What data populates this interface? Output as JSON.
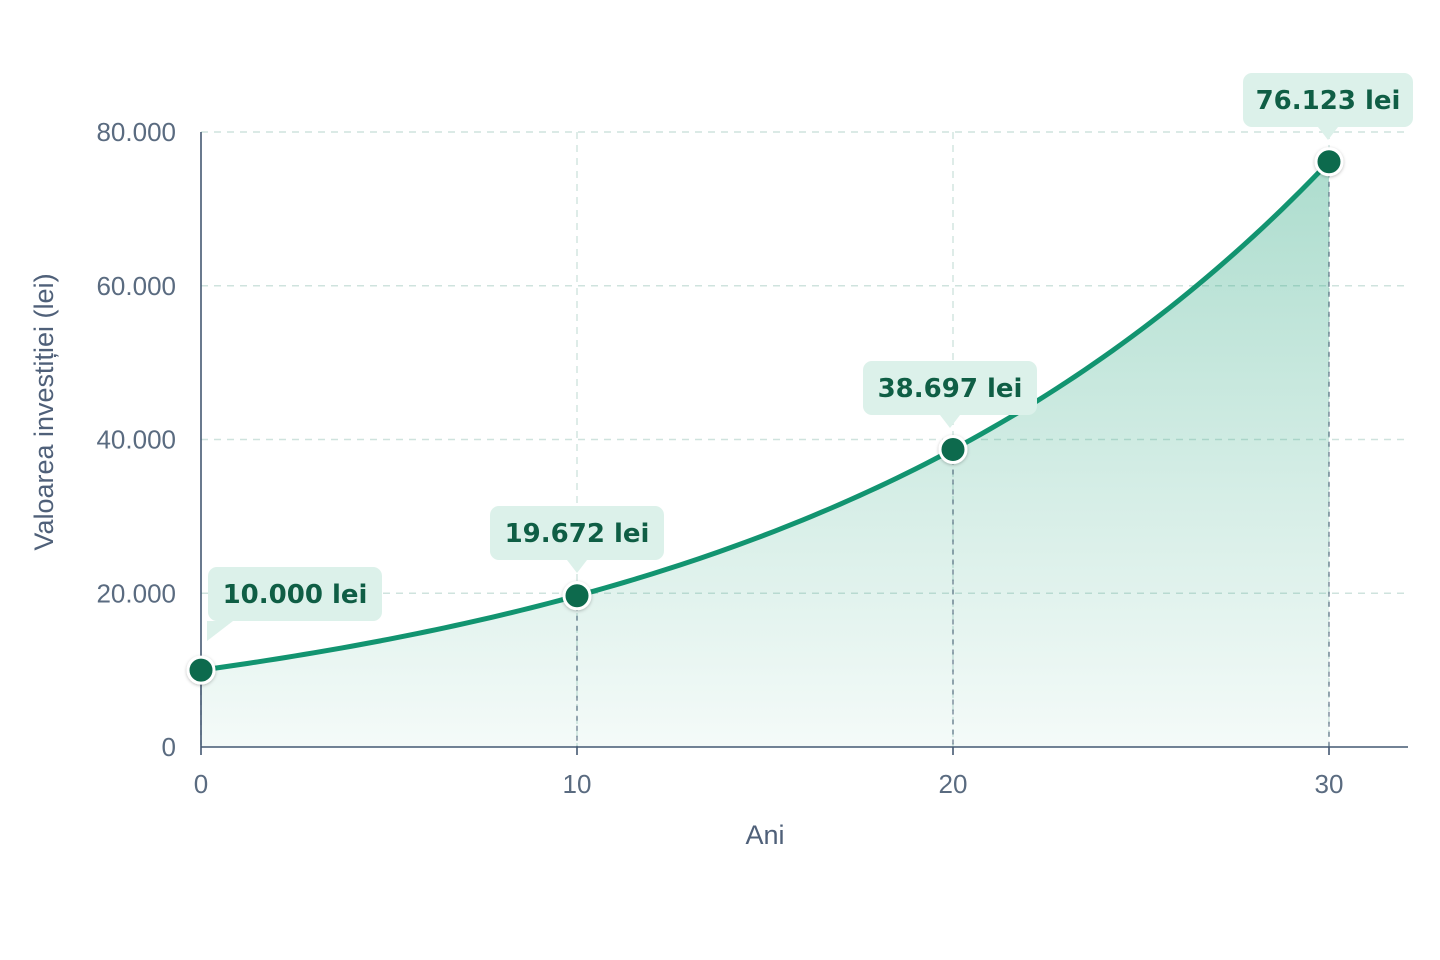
{
  "chart_data": {
    "type": "area",
    "title": "",
    "xlabel": "Ani",
    "ylabel": "Valoarea investiției (lei)",
    "xlim": [
      0,
      32
    ],
    "ylim": [
      0,
      80000
    ],
    "x_ticks": [
      0,
      10,
      20,
      30
    ],
    "x_tick_labels": [
      "0",
      "10",
      "20",
      "30"
    ],
    "y_ticks": [
      0,
      20000,
      40000,
      60000,
      80000
    ],
    "y_tick_labels": [
      "0",
      "20.000",
      "40.000",
      "60.000",
      "80.000"
    ],
    "grid": true,
    "growth_rate": 0.07,
    "series": [
      {
        "x": [
          0,
          10,
          20,
          30
        ],
        "values": [
          10000,
          19672,
          38697,
          76123
        ],
        "labels": [
          "10.000 lei",
          "19.672 lei",
          "38.697 lei",
          "76.123 lei"
        ]
      }
    ],
    "colors": {
      "line": "#129470",
      "marker": "#0c6b4e",
      "fill": "#27a57e",
      "callout_bg": "#dcf1ea",
      "callout_text": "#0f5e45",
      "axis": "#445872",
      "grid": "#cfe3de"
    }
  }
}
